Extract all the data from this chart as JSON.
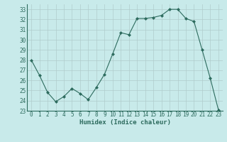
{
  "x": [
    0,
    1,
    2,
    3,
    4,
    5,
    6,
    7,
    8,
    9,
    10,
    11,
    12,
    13,
    14,
    15,
    16,
    17,
    18,
    19,
    20,
    21,
    22,
    23
  ],
  "y": [
    28.0,
    26.5,
    24.8,
    23.9,
    24.4,
    25.2,
    24.7,
    24.1,
    25.3,
    26.6,
    28.6,
    30.7,
    30.5,
    32.1,
    32.1,
    32.2,
    32.4,
    33.0,
    33.0,
    32.1,
    31.8,
    29.0,
    26.2,
    23.1
  ],
  "line_color": "#2d6b5e",
  "marker": "D",
  "marker_size": 2.0,
  "bg_color": "#c8eaea",
  "grid_color": "#b0cccc",
  "xlabel": "Humidex (Indice chaleur)",
  "ylim": [
    23,
    33.5
  ],
  "xlim": [
    -0.5,
    23.5
  ],
  "yticks": [
    23,
    24,
    25,
    26,
    27,
    28,
    29,
    30,
    31,
    32,
    33
  ],
  "xticks": [
    0,
    1,
    2,
    3,
    4,
    5,
    6,
    7,
    8,
    9,
    10,
    11,
    12,
    13,
    14,
    15,
    16,
    17,
    18,
    19,
    20,
    21,
    22,
    23
  ],
  "tick_color": "#2d6b5e",
  "label_color": "#2d6b5e"
}
